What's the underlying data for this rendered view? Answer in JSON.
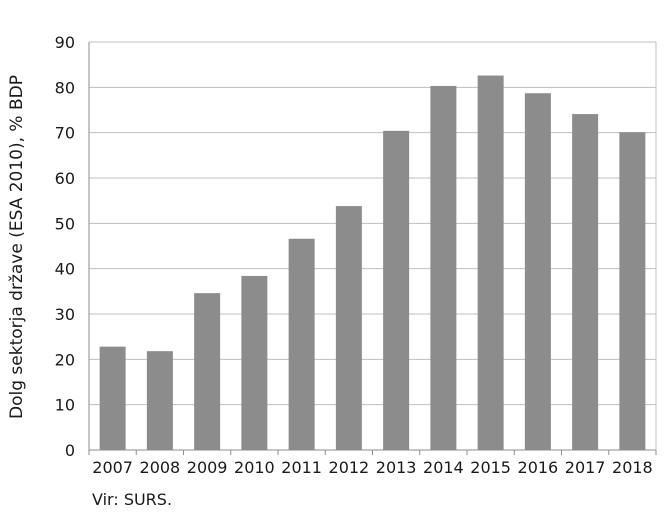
{
  "chart_data": {
    "type": "bar",
    "categories": [
      "2007",
      "2008",
      "2009",
      "2010",
      "2011",
      "2012",
      "2013",
      "2014",
      "2015",
      "2016",
      "2017",
      "2018"
    ],
    "values": [
      22.8,
      21.8,
      34.6,
      38.4,
      46.6,
      53.8,
      70.4,
      80.3,
      82.6,
      78.7,
      74.1,
      70.1
    ],
    "ylabel": "Dolg sektorja države (ESA 2010), % BDP",
    "ylim": [
      0,
      90
    ],
    "yticks": [
      "0",
      "10",
      "20",
      "30",
      "40",
      "50",
      "60",
      "70",
      "80",
      "90"
    ],
    "grid": true,
    "colors": {
      "bar": "#8c8c8c",
      "grid": "#bfbfbf",
      "axis": "#8c8c8c"
    }
  },
  "source": "Vir: SURS."
}
